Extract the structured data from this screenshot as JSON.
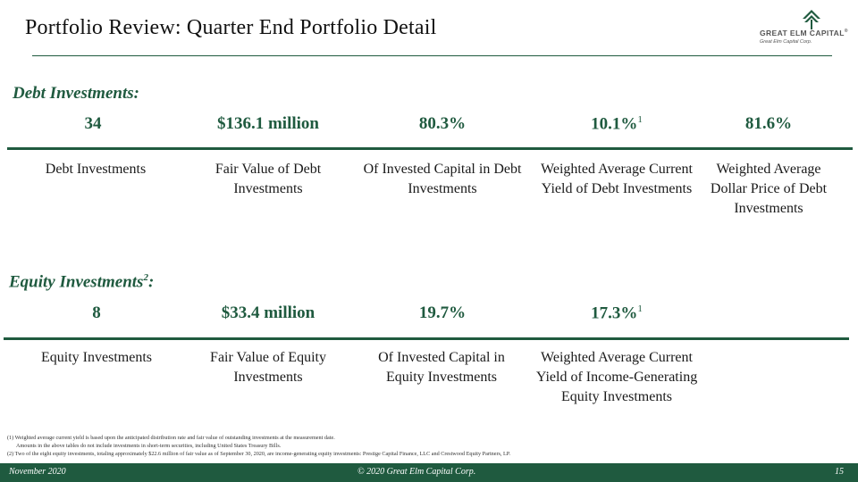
{
  "title": "Portfolio Review: Quarter End Portfolio Detail",
  "logo": {
    "name": "GREAT ELM CAPITAL",
    "trademark": "®",
    "tagline": "Great Elm Capital Corp.",
    "mark_icon": "tree-chevron-icon",
    "mark_color": "#1f5a3f"
  },
  "debt": {
    "heading": "Debt Investments:",
    "stats": [
      {
        "value": "34",
        "sup": "",
        "label": "Debt Investments"
      },
      {
        "value": "$136.1 million",
        "sup": "",
        "label": "Fair Value of Debt Investments"
      },
      {
        "value": "80.3%",
        "sup": "",
        "label": "Of Invested Capital in Debt Investments"
      },
      {
        "value": "10.1%",
        "sup": "1",
        "label": "Weighted Average Current Yield of Debt Investments"
      },
      {
        "value": "81.6%",
        "sup": "",
        "label": "Weighted Average Dollar Price of Debt Investments"
      }
    ]
  },
  "equity": {
    "heading": "Equity Investments",
    "heading_sup": "2",
    "heading_suffix": ":",
    "stats": [
      {
        "value": "8",
        "sup": "",
        "label": "Equity Investments"
      },
      {
        "value": "$33.4 million",
        "sup": "",
        "label": "Fair Value of Equity Investments"
      },
      {
        "value": "19.7%",
        "sup": "",
        "label": "Of Invested Capital in Equity Investments"
      },
      {
        "value": "17.3%",
        "sup": "1",
        "label": "Weighted Average Current Yield of Income-Generating Equity Investments"
      }
    ]
  },
  "footnotes": {
    "note1": "(1) Weighted average current yield is based upon the anticipated distribution rate and fair value of outstanding investments at the measurement date.",
    "note1_cont": "Amounts in the above tables do not include investments in short-term securities, including United States Treasury Bills.",
    "note2": "(2) Two of the eight equity investments, totaling approximately $22.6 million of fair value as of September 30, 2020, are income-generating equity investments: Prestige Capital Finance, LLC and Crestwood Equity Partners, LP."
  },
  "footer": {
    "date": "November 2020",
    "copyright": "© 2020 Great Elm Capital Corp.",
    "page_number": "15"
  },
  "colors": {
    "accent": "#1f5a3f"
  }
}
